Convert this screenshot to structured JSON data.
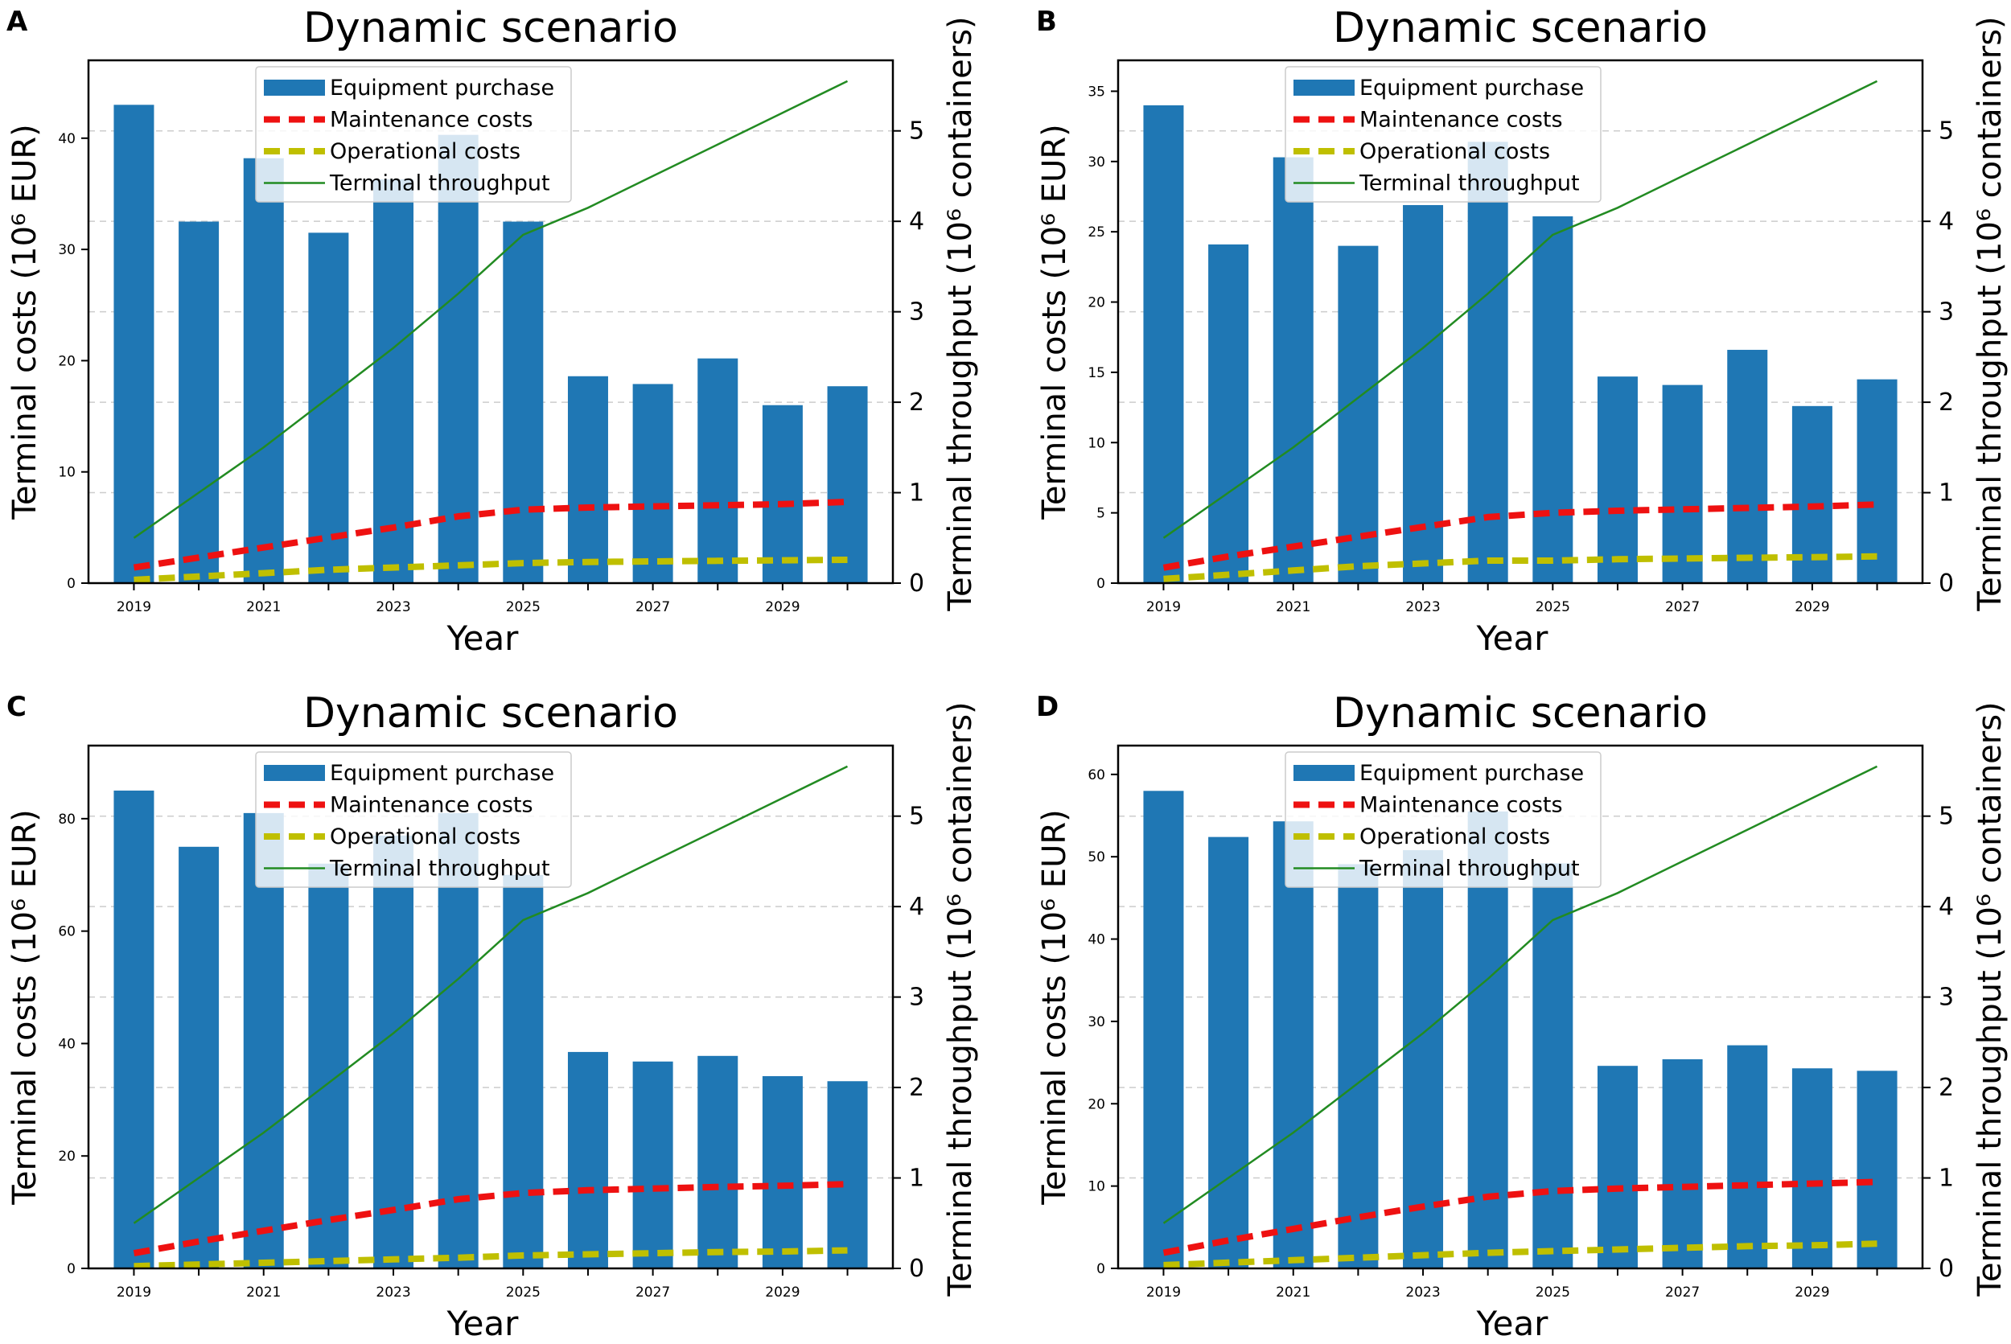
{
  "chart_data": [
    {
      "type": "bar",
      "panel_letter": "A",
      "title": "Dynamic scenario",
      "xlabel": "Year",
      "ylabel": "Terminal costs (10⁶ EUR)",
      "y2label": "Terminal throughput (10⁶ containers)",
      "categories": [
        2019,
        2020,
        2021,
        2022,
        2023,
        2024,
        2025,
        2026,
        2027,
        2028,
        2029,
        2030
      ],
      "x_tick_labels": [
        "2019",
        "2021",
        "2023",
        "2025",
        "2027",
        "2029"
      ],
      "ylim": [
        0,
        47
      ],
      "y_ticks": [
        0,
        10,
        20,
        30,
        40
      ],
      "y2lim": [
        0,
        5.78
      ],
      "y2_ticks": [
        0,
        1,
        2,
        3,
        4,
        5
      ],
      "grid": "y2-dashed",
      "legend_position": "top-center",
      "legend": [
        "Equipment purchase",
        "Maintenance costs",
        "Operational costs",
        "Terminal throughput"
      ],
      "series": [
        {
          "name": "Equipment purchase",
          "kind": "bar",
          "axis": "left",
          "color": "#1f77b4",
          "values": [
            43,
            32.5,
            38.2,
            31.5,
            36.3,
            40.3,
            32.5,
            18.6,
            17.9,
            20.2,
            16,
            17.7
          ]
        },
        {
          "name": "Maintenance costs",
          "kind": "line",
          "style": "dashed",
          "axis": "left",
          "color": "#ee1111",
          "values": [
            1.4,
            2.3,
            3.2,
            4.1,
            5.0,
            6.0,
            6.6,
            6.8,
            6.9,
            7.0,
            7.1,
            7.3
          ]
        },
        {
          "name": "Operational costs",
          "kind": "line",
          "style": "dashed",
          "axis": "left",
          "color": "#bfbf00",
          "values": [
            0.3,
            0.6,
            0.9,
            1.2,
            1.4,
            1.6,
            1.8,
            1.9,
            1.95,
            2.0,
            2.05,
            2.1
          ]
        },
        {
          "name": "Terminal throughput",
          "kind": "line",
          "style": "solid",
          "axis": "right",
          "color": "#228b22",
          "values": [
            0.5,
            1.0,
            1.5,
            2.05,
            2.6,
            3.2,
            3.85,
            4.15,
            4.5,
            4.85,
            5.2,
            5.55
          ]
        }
      ]
    },
    {
      "type": "bar",
      "panel_letter": "B",
      "title": "Dynamic scenario",
      "xlabel": "Year",
      "ylabel": "Terminal costs (10⁶ EUR)",
      "y2label": "Terminal throughput (10⁶ containers)",
      "categories": [
        2019,
        2020,
        2021,
        2022,
        2023,
        2024,
        2025,
        2026,
        2027,
        2028,
        2029,
        2030
      ],
      "x_tick_labels": [
        "2019",
        "2021",
        "2023",
        "2025",
        "2027",
        "2029"
      ],
      "ylim": [
        0,
        37.2
      ],
      "y_ticks": [
        0,
        5,
        10,
        15,
        20,
        25,
        30,
        35
      ],
      "y2lim": [
        0,
        5.78
      ],
      "y2_ticks": [
        0,
        1,
        2,
        3,
        4,
        5
      ],
      "grid": "y2-dashed",
      "legend_position": "top-center",
      "legend": [
        "Equipment purchase",
        "Maintenance costs",
        "Operational costs",
        "Terminal throughput"
      ],
      "series": [
        {
          "name": "Equipment purchase",
          "kind": "bar",
          "axis": "left",
          "color": "#1f77b4",
          "values": [
            34,
            24.1,
            30.3,
            24,
            26.9,
            31.4,
            26.1,
            14.7,
            14.1,
            16.6,
            12.6,
            14.5
          ]
        },
        {
          "name": "Maintenance costs",
          "kind": "line",
          "style": "dashed",
          "axis": "left",
          "color": "#ee1111",
          "values": [
            1.1,
            1.9,
            2.6,
            3.3,
            4.0,
            4.7,
            5.0,
            5.15,
            5.25,
            5.35,
            5.45,
            5.6
          ]
        },
        {
          "name": "Operational costs",
          "kind": "line",
          "style": "dashed",
          "axis": "left",
          "color": "#bfbf00",
          "values": [
            0.3,
            0.6,
            0.9,
            1.2,
            1.4,
            1.6,
            1.6,
            1.7,
            1.75,
            1.8,
            1.85,
            1.9
          ]
        },
        {
          "name": "Terminal throughput",
          "kind": "line",
          "style": "solid",
          "axis": "right",
          "color": "#228b22",
          "values": [
            0.5,
            1.0,
            1.5,
            2.05,
            2.6,
            3.2,
            3.85,
            4.15,
            4.5,
            4.85,
            5.2,
            5.55
          ]
        }
      ]
    },
    {
      "type": "bar",
      "panel_letter": "C",
      "title": "Dynamic scenario",
      "xlabel": "Year",
      "ylabel": "Terminal costs (10⁶ EUR)",
      "y2label": "Terminal throughput (10⁶ containers)",
      "categories": [
        2019,
        2020,
        2021,
        2022,
        2023,
        2024,
        2025,
        2026,
        2027,
        2028,
        2029,
        2030
      ],
      "x_tick_labels": [
        "2019",
        "2021",
        "2023",
        "2025",
        "2027",
        "2029"
      ],
      "ylim": [
        0,
        93
      ],
      "y_ticks": [
        0,
        20,
        40,
        60,
        80
      ],
      "y2lim": [
        0,
        5.78
      ],
      "y2_ticks": [
        0,
        1,
        2,
        3,
        4,
        5
      ],
      "grid": "y2-dashed",
      "legend_position": "top-center",
      "legend": [
        "Equipment purchase",
        "Maintenance costs",
        "Operational costs",
        "Terminal throughput"
      ],
      "series": [
        {
          "name": "Equipment purchase",
          "kind": "bar",
          "axis": "left",
          "color": "#1f77b4",
          "values": [
            85,
            75,
            81,
            72,
            77,
            81,
            70,
            38.5,
            36.8,
            37.8,
            34.2,
            33.3
          ]
        },
        {
          "name": "Maintenance costs",
          "kind": "line",
          "style": "dashed",
          "axis": "left",
          "color": "#ee1111",
          "values": [
            2.7,
            4.8,
            6.7,
            8.6,
            10.4,
            12.3,
            13.4,
            13.9,
            14.2,
            14.5,
            14.7,
            15.0
          ]
        },
        {
          "name": "Operational costs",
          "kind": "line",
          "style": "dashed",
          "axis": "left",
          "color": "#bfbf00",
          "values": [
            0.4,
            0.7,
            1.0,
            1.3,
            1.6,
            1.9,
            2.3,
            2.5,
            2.7,
            2.9,
            3.0,
            3.2
          ]
        },
        {
          "name": "Terminal throughput",
          "kind": "line",
          "style": "solid",
          "axis": "right",
          "color": "#228b22",
          "values": [
            0.5,
            1.0,
            1.5,
            2.05,
            2.6,
            3.2,
            3.85,
            4.15,
            4.5,
            4.85,
            5.2,
            5.55
          ]
        }
      ]
    },
    {
      "type": "bar",
      "panel_letter": "D",
      "title": "Dynamic scenario",
      "xlabel": "Year",
      "ylabel": "Terminal costs (10⁶ EUR)",
      "y2label": "Terminal throughput (10⁶ containers)",
      "categories": [
        2019,
        2020,
        2021,
        2022,
        2023,
        2024,
        2025,
        2026,
        2027,
        2028,
        2029,
        2030
      ],
      "x_tick_labels": [
        "2019",
        "2021",
        "2023",
        "2025",
        "2027",
        "2029"
      ],
      "ylim": [
        0,
        63.5
      ],
      "y_ticks": [
        0,
        10,
        20,
        30,
        40,
        50,
        60
      ],
      "y2lim": [
        0,
        5.78
      ],
      "y2_ticks": [
        0,
        1,
        2,
        3,
        4,
        5
      ],
      "grid": "y2-dashed",
      "legend_position": "top-center",
      "legend": [
        "Equipment purchase",
        "Maintenance costs",
        "Operational costs",
        "Terminal throughput"
      ],
      "series": [
        {
          "name": "Equipment purchase",
          "kind": "bar",
          "axis": "left",
          "color": "#1f77b4",
          "values": [
            58,
            52.4,
            54.3,
            49.1,
            50.8,
            55.5,
            49.2,
            24.6,
            25.4,
            27.1,
            24.3,
            24
          ]
        },
        {
          "name": "Maintenance costs",
          "kind": "line",
          "style": "dashed",
          "axis": "left",
          "color": "#ee1111",
          "values": [
            1.9,
            3.4,
            4.8,
            6.2,
            7.5,
            8.7,
            9.4,
            9.7,
            9.9,
            10.1,
            10.3,
            10.5
          ]
        },
        {
          "name": "Operational costs",
          "kind": "line",
          "style": "dashed",
          "axis": "left",
          "color": "#bfbf00",
          "values": [
            0.4,
            0.7,
            1.0,
            1.3,
            1.6,
            1.9,
            2.1,
            2.3,
            2.5,
            2.7,
            2.8,
            3.0
          ]
        },
        {
          "name": "Terminal throughput",
          "kind": "line",
          "style": "solid",
          "axis": "right",
          "color": "#228b22",
          "values": [
            0.5,
            1.0,
            1.5,
            2.05,
            2.6,
            3.2,
            3.85,
            4.15,
            4.5,
            4.85,
            5.2,
            5.55
          ]
        }
      ]
    }
  ]
}
